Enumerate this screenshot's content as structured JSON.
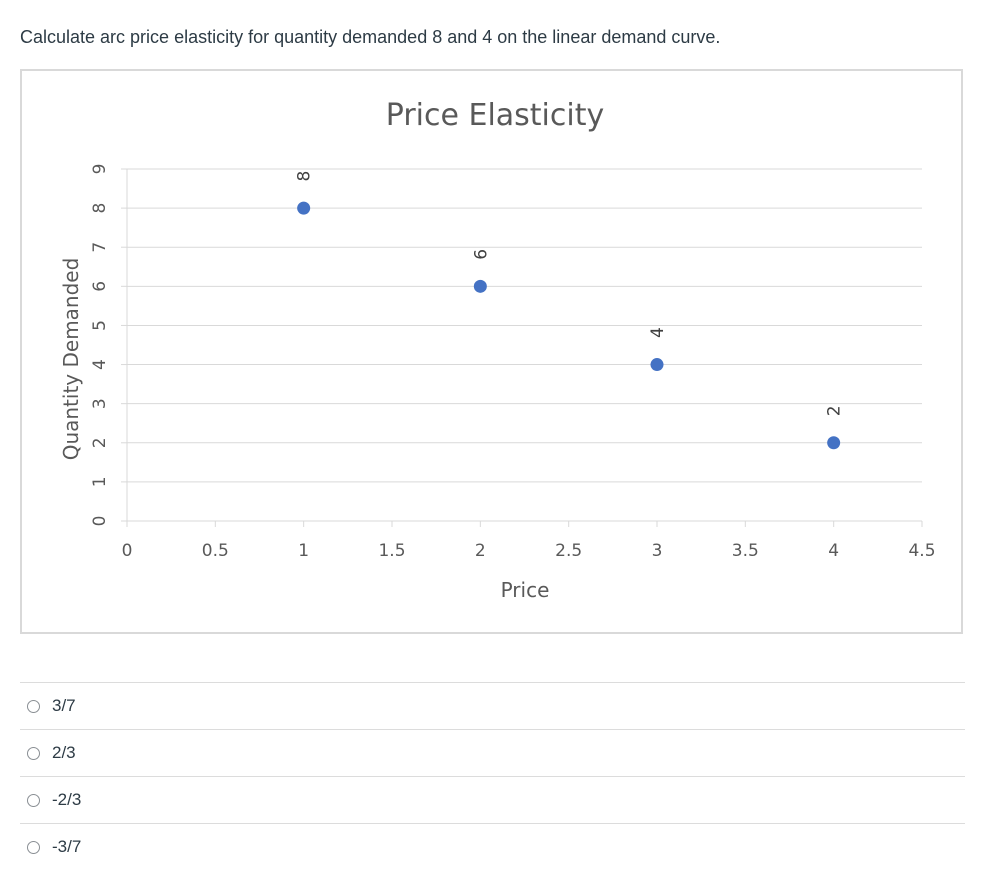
{
  "question": {
    "text": "Calculate arc price elasticity for quantity demanded 8 and 4 on the linear demand curve."
  },
  "answers": [
    {
      "label": "3/7",
      "selected": false
    },
    {
      "label": "2/3",
      "selected": false
    },
    {
      "label": "-2/3",
      "selected": false
    },
    {
      "label": "-3/7",
      "selected": false
    }
  ],
  "colors": {
    "marker": "#4472c4",
    "gridline": "#d9d9d9",
    "axis_text": "#595959"
  },
  "chart_data": {
    "type": "scatter",
    "title": "Price Elasticity",
    "xlabel": "Price",
    "ylabel": "Quantity Demanded",
    "xlim": [
      0,
      4.5
    ],
    "ylim": [
      0,
      9
    ],
    "x_ticks": [
      "0",
      "0.5",
      "1",
      "1.5",
      "2",
      "2.5",
      "3",
      "3.5",
      "4",
      "4.5"
    ],
    "y_ticks": [
      "0",
      "1",
      "2",
      "3",
      "4",
      "5",
      "6",
      "7",
      "8",
      "9"
    ],
    "grid": true,
    "legend": "none",
    "points": [
      {
        "x": 1,
        "y": 8,
        "label": "8"
      },
      {
        "x": 2,
        "y": 6,
        "label": "6"
      },
      {
        "x": 3,
        "y": 4,
        "label": "4"
      },
      {
        "x": 4,
        "y": 2,
        "label": "2"
      }
    ]
  }
}
